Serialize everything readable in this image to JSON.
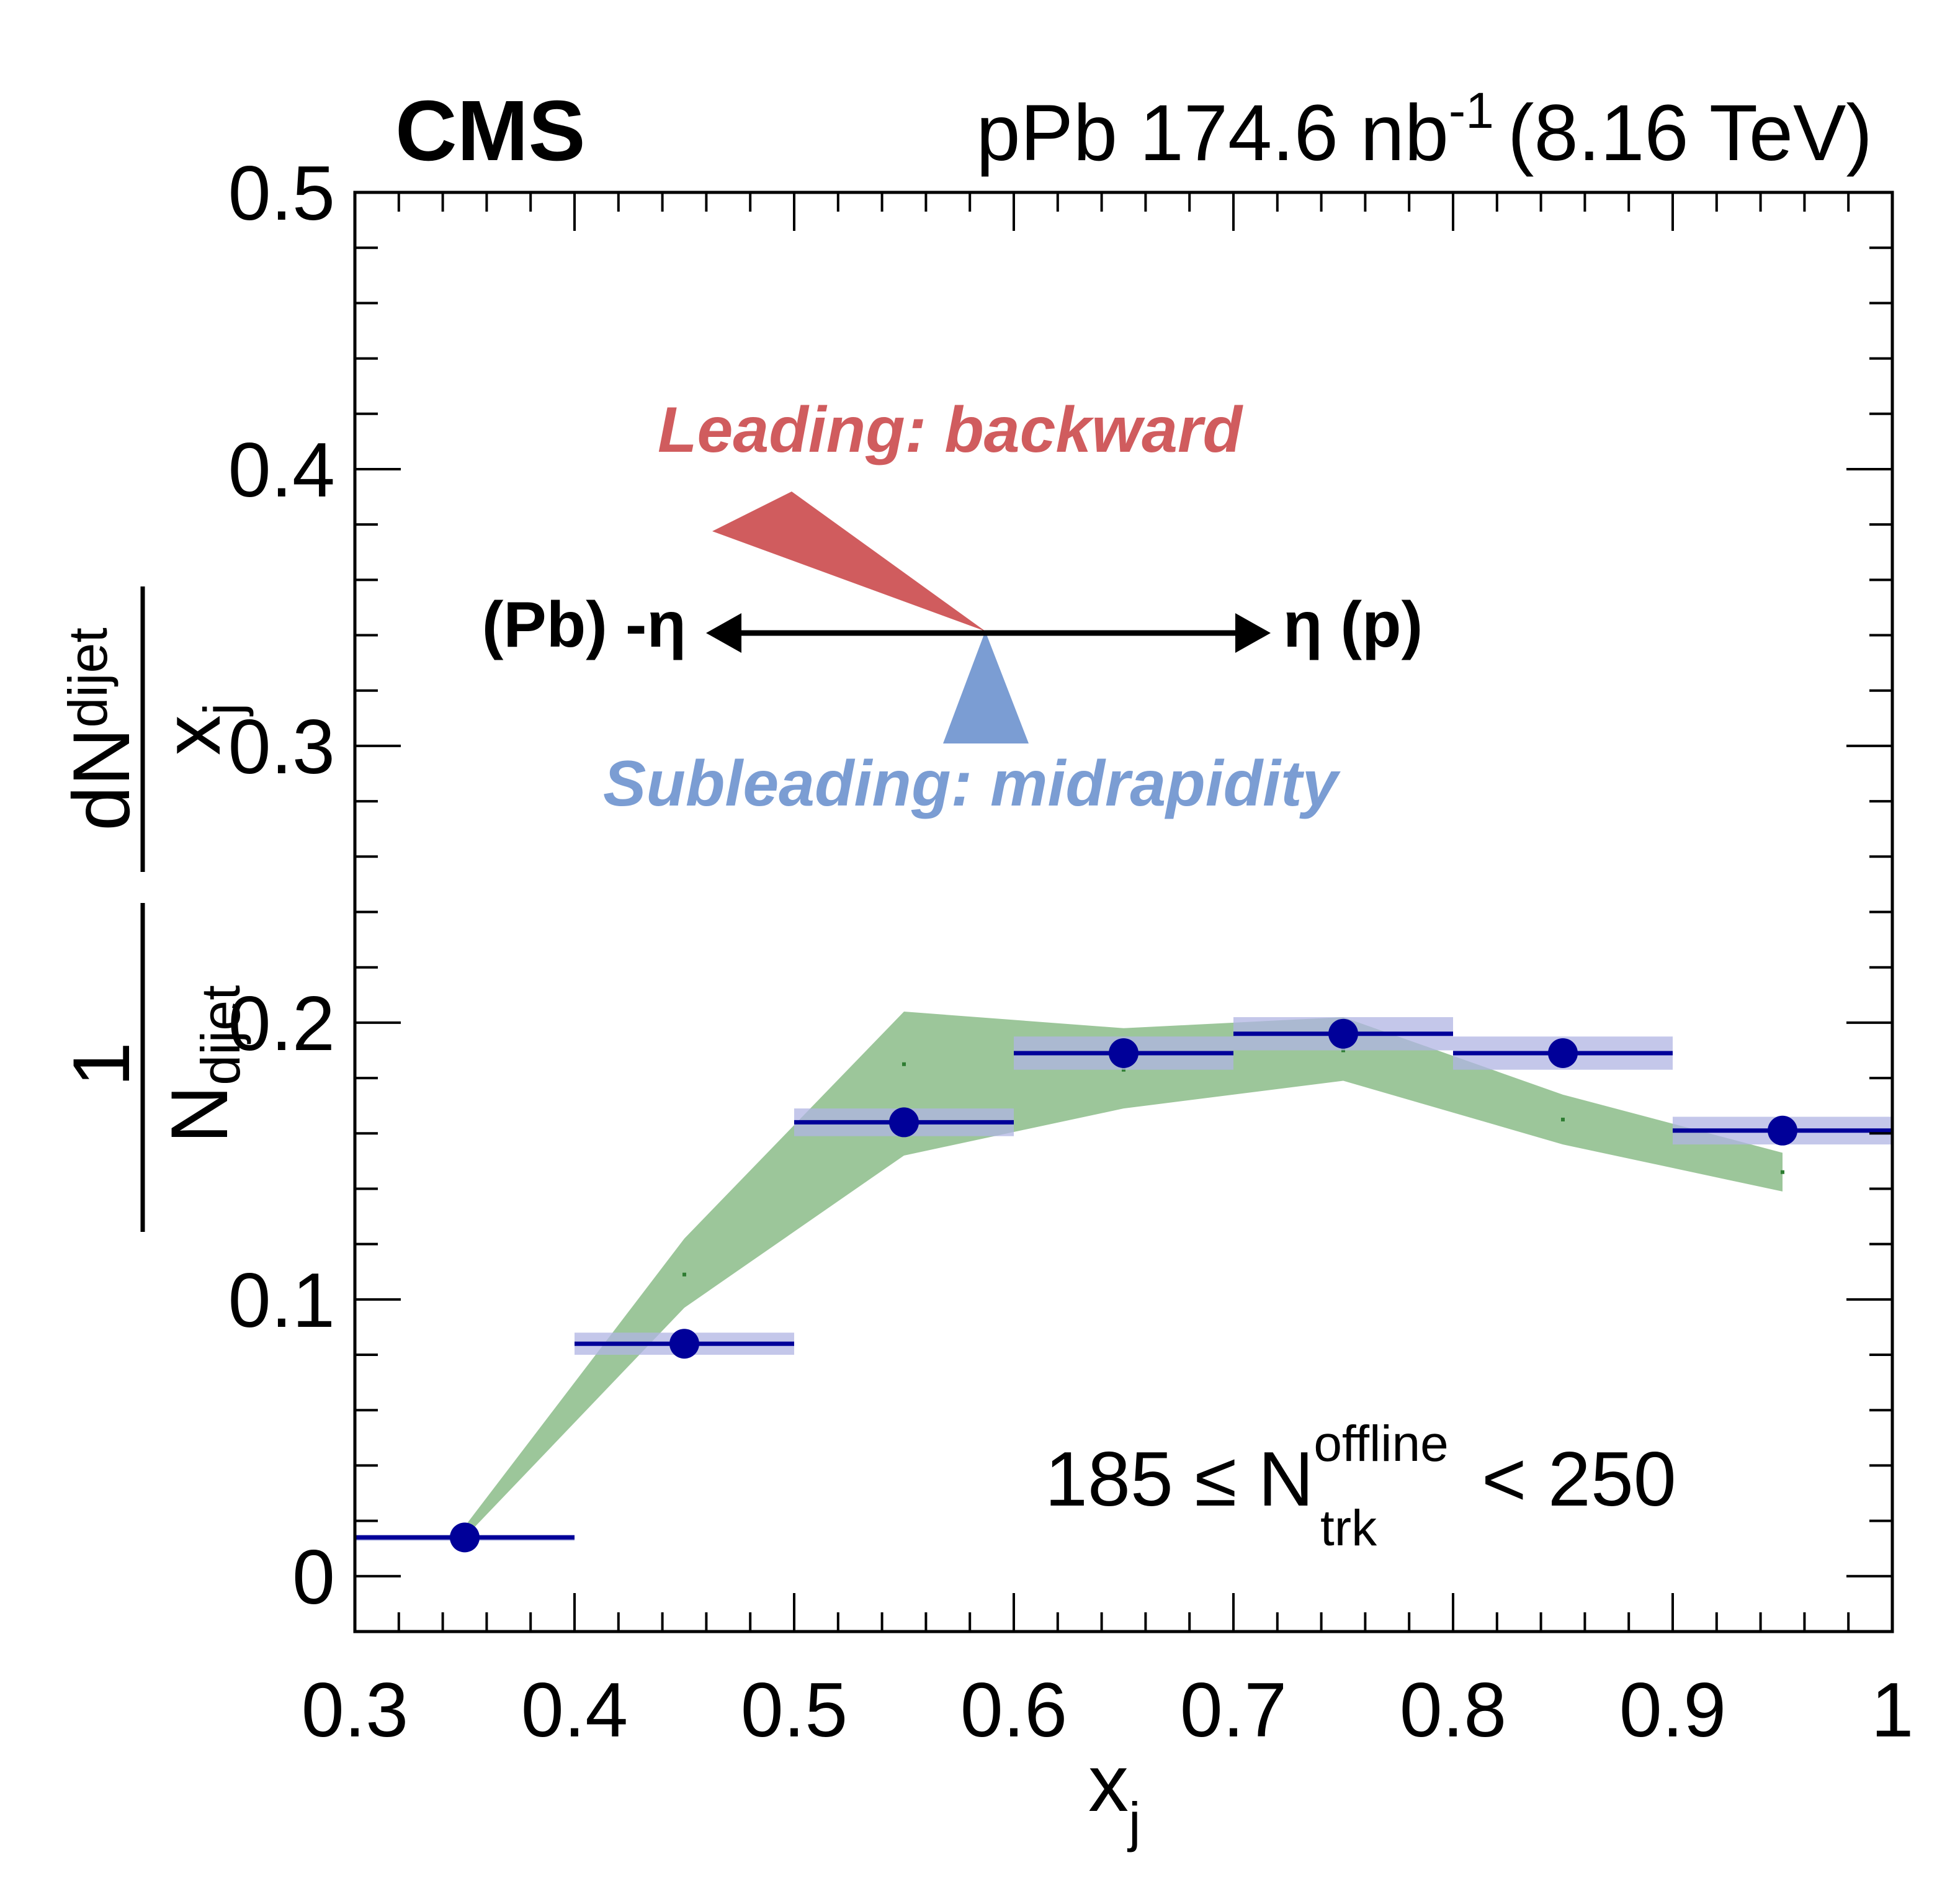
{
  "header": {
    "experiment": "CMS",
    "lumi_prefix": "pPb 174.6 nb",
    "lumi_exponent": "-1",
    "energy": "(8.16 TeV)"
  },
  "axes": {
    "x_label_main": "x",
    "x_label_sub": "j",
    "y_label": {
      "one": "1",
      "n_main": "N",
      "n_sub": "dijet",
      "dn_main": "dN",
      "dn_sub": "dijet",
      "x_main": "x",
      "x_sub": "j"
    }
  },
  "diagram": {
    "leading_label": "Leading: backward",
    "subleading_label": "Subleading: midrapidity",
    "left_label": "(Pb) -η",
    "right_label": "η (p)",
    "leading_color": "#d05c5e",
    "subleading_color": "#7b9dd3"
  },
  "selection": {
    "range_low": "185 ≤ N",
    "sup": "offline",
    "sub": "trk",
    "range_high": "< 250"
  },
  "colors": {
    "data": "#000099",
    "data_band": "#b0b4e3",
    "model_band": "#9cc69a",
    "frame": "#000000"
  },
  "chart_data": {
    "type": "scatter",
    "xlim": [
      0.3,
      1.0
    ],
    "ylim": [
      -0.02,
      0.5
    ],
    "xticks": [
      {
        "v": 0.3,
        "label": "0.3"
      },
      {
        "v": 0.4,
        "label": "0.4"
      },
      {
        "v": 0.5,
        "label": "0.5"
      },
      {
        "v": 0.6,
        "label": "0.6"
      },
      {
        "v": 0.7,
        "label": "0.7"
      },
      {
        "v": 0.8,
        "label": "0.8"
      },
      {
        "v": 0.9,
        "label": "0.9"
      },
      {
        "v": 1.0,
        "label": "1"
      }
    ],
    "yticks": [
      {
        "v": 0.0,
        "label": "0"
      },
      {
        "v": 0.1,
        "label": "0.1"
      },
      {
        "v": 0.2,
        "label": "0.2"
      },
      {
        "v": 0.3,
        "label": "0.3"
      },
      {
        "v": 0.4,
        "label": "0.4"
      },
      {
        "v": 0.5,
        "label": "0.5"
      }
    ],
    "data_points": [
      {
        "x": 0.35,
        "xlo": 0.3,
        "xhi": 0.4,
        "y": 0.014,
        "syst": 0.001
      },
      {
        "x": 0.45,
        "xlo": 0.4,
        "xhi": 0.5,
        "y": 0.084,
        "syst": 0.004
      },
      {
        "x": 0.55,
        "xlo": 0.5,
        "xhi": 0.6,
        "y": 0.164,
        "syst": 0.005
      },
      {
        "x": 0.65,
        "xlo": 0.6,
        "xhi": 0.7,
        "y": 0.189,
        "syst": 0.006
      },
      {
        "x": 0.75,
        "xlo": 0.7,
        "xhi": 0.8,
        "y": 0.196,
        "syst": 0.006
      },
      {
        "x": 0.85,
        "xlo": 0.8,
        "xhi": 0.9,
        "y": 0.189,
        "syst": 0.006
      },
      {
        "x": 0.95,
        "xlo": 0.9,
        "xhi": 1.0,
        "y": 0.161,
        "syst": 0.005
      }
    ],
    "model_band": {
      "x": [
        0.35,
        0.45,
        0.55,
        0.65,
        0.75,
        0.85,
        0.95
      ],
      "upper": [
        0.018,
        0.122,
        0.204,
        0.198,
        0.202,
        0.174,
        0.153
      ],
      "lower": [
        0.014,
        0.097,
        0.152,
        0.169,
        0.179,
        0.156,
        0.139
      ],
      "central": [
        0.016,
        0.109,
        0.185,
        0.183,
        0.19,
        0.165,
        0.146
      ]
    }
  }
}
